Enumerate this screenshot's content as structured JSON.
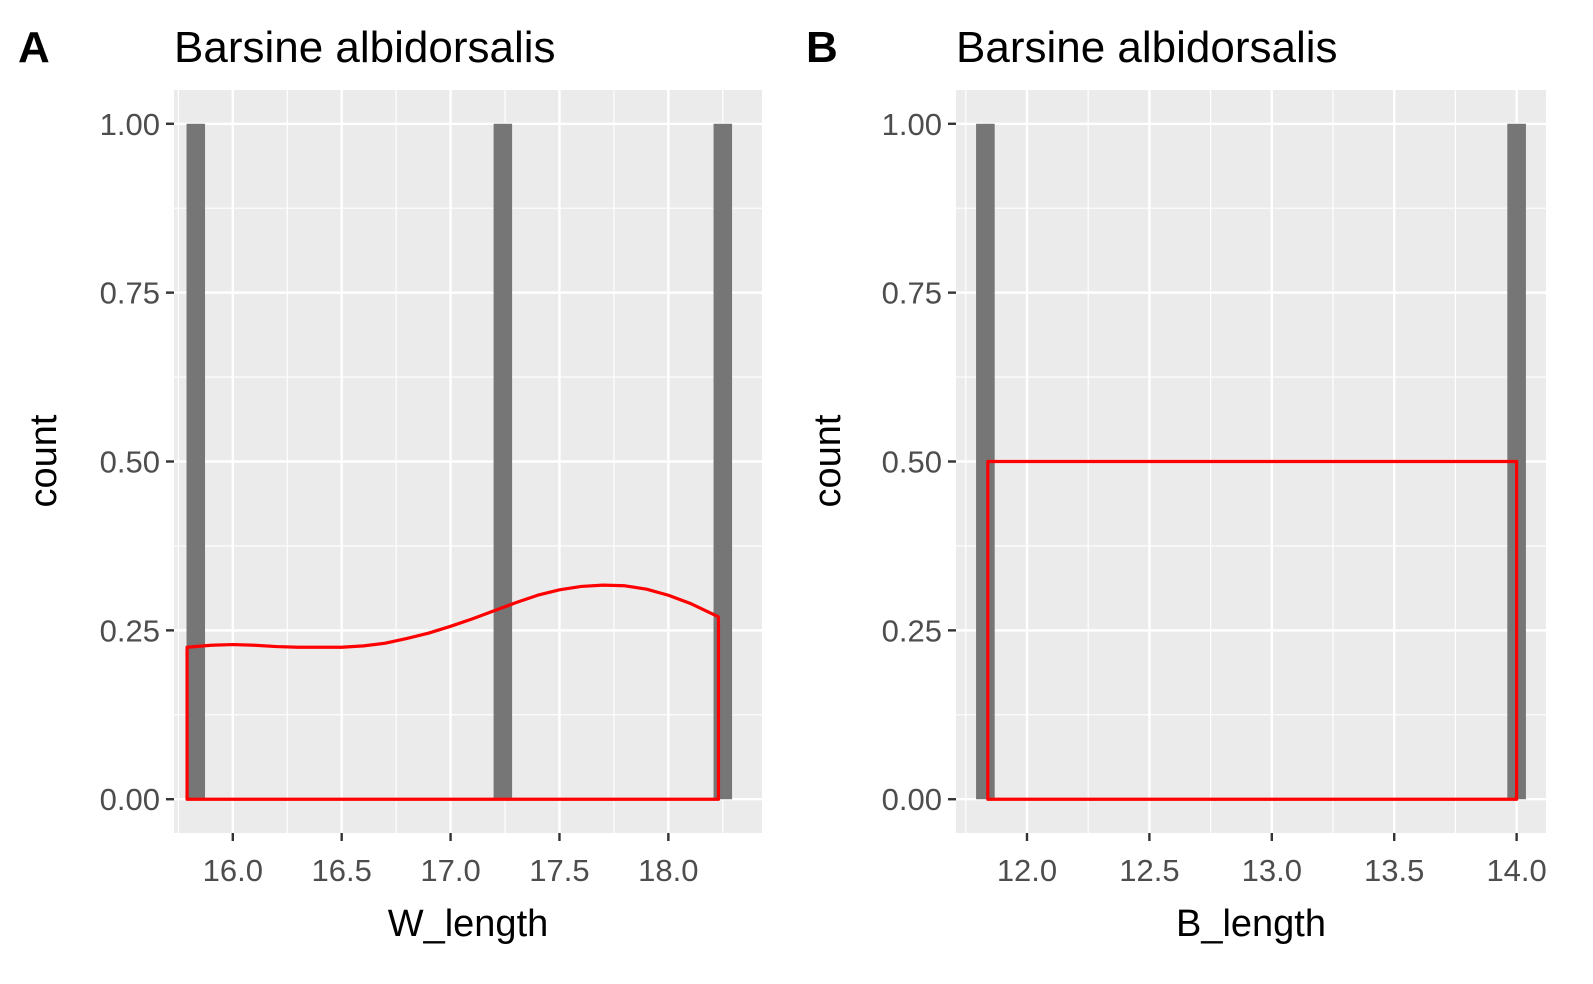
{
  "chart_data": [
    {
      "panel_tag": "A",
      "type": "bar",
      "title": "Barsine albidorsalis",
      "xlabel": "W_length",
      "ylabel": "count",
      "xlim": [
        15.73,
        18.43
      ],
      "ylim": [
        -0.05,
        1.05
      ],
      "x_ticks": [
        16.0,
        16.5,
        17.0,
        17.5,
        18.0
      ],
      "x_tick_labels": [
        "16.0",
        "16.5",
        "17.0",
        "17.5",
        "18.0"
      ],
      "y_ticks": [
        0.0,
        0.25,
        0.5,
        0.75,
        1.0
      ],
      "y_tick_labels": [
        "0.00",
        "0.25",
        "0.50",
        "0.75",
        "1.00"
      ],
      "bar_width": 0.085,
      "bars": [
        {
          "x": 15.83,
          "count": 1
        },
        {
          "x": 17.24,
          "count": 1
        },
        {
          "x": 18.25,
          "count": 1
        }
      ],
      "density": {
        "x": [
          15.79,
          15.9,
          16.0,
          16.1,
          16.2,
          16.3,
          16.4,
          16.5,
          16.6,
          16.7,
          16.8,
          16.9,
          17.0,
          17.1,
          17.2,
          17.3,
          17.4,
          17.5,
          17.6,
          17.7,
          17.8,
          17.9,
          18.0,
          18.1,
          18.23
        ],
        "y": [
          0.225,
          0.228,
          0.229,
          0.228,
          0.226,
          0.225,
          0.225,
          0.225,
          0.227,
          0.231,
          0.238,
          0.246,
          0.256,
          0.267,
          0.279,
          0.291,
          0.302,
          0.31,
          0.315,
          0.317,
          0.316,
          0.311,
          0.302,
          0.29,
          0.27
        ]
      },
      "grid": true,
      "bar_color": "#767676",
      "density_color": "#ff0000",
      "panel_background": "#ebebeb"
    },
    {
      "panel_tag": "B",
      "type": "bar",
      "title": "Barsine albidorsalis",
      "xlabel": "B_length",
      "ylabel": "count",
      "xlim": [
        11.71,
        14.12
      ],
      "ylim": [
        -0.05,
        1.05
      ],
      "x_ticks": [
        12.0,
        12.5,
        13.0,
        13.5,
        14.0
      ],
      "x_tick_labels": [
        "12.0",
        "12.5",
        "13.0",
        "13.5",
        "14.0"
      ],
      "y_ticks": [
        0.0,
        0.25,
        0.5,
        0.75,
        1.0
      ],
      "y_tick_labels": [
        "0.00",
        "0.25",
        "0.50",
        "0.75",
        "1.00"
      ],
      "bar_width": 0.076,
      "bars": [
        {
          "x": 11.83,
          "count": 1
        },
        {
          "x": 14.0,
          "count": 1
        }
      ],
      "density": {
        "x": [
          11.84,
          14.0
        ],
        "y": [
          0.5,
          0.5
        ]
      },
      "grid": true,
      "bar_color": "#767676",
      "density_color": "#ff0000",
      "panel_background": "#ebebeb"
    }
  ]
}
